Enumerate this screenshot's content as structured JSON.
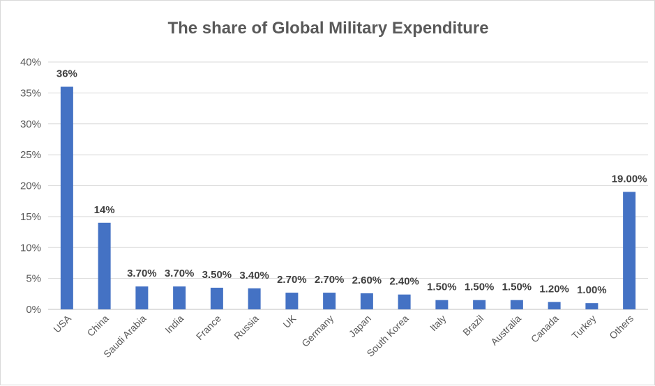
{
  "chart_data": {
    "type": "bar",
    "title": "The share of Global Military Expenditure",
    "xlabel": "",
    "ylabel": "",
    "ylim": [
      0,
      40
    ],
    "yticks": [
      "0%",
      "5%",
      "10%",
      "15%",
      "20%",
      "25%",
      "30%",
      "35%",
      "40%"
    ],
    "grid": true,
    "legend": "none",
    "bar_color": "#4472c4",
    "categories": [
      "USA",
      "China",
      "Saudi Arabia",
      "India",
      "France",
      "Russia",
      "UK",
      "Germany",
      "Japan",
      "South Korea",
      "Italy",
      "Brazil",
      "Australia",
      "Canada",
      "Turkey",
      "Others"
    ],
    "values": [
      36,
      14,
      3.7,
      3.7,
      3.5,
      3.4,
      2.7,
      2.7,
      2.6,
      2.4,
      1.5,
      1.5,
      1.5,
      1.2,
      1.0,
      19.0
    ],
    "data_labels": [
      "36%",
      "14%",
      "3.70%",
      "3.70%",
      "3.50%",
      "3.40%",
      "2.70%",
      "2.70%",
      "2.60%",
      "2.40%",
      "1.50%",
      "1.50%",
      "1.50%",
      "1.20%",
      "1.00%",
      "19.00%"
    ]
  }
}
